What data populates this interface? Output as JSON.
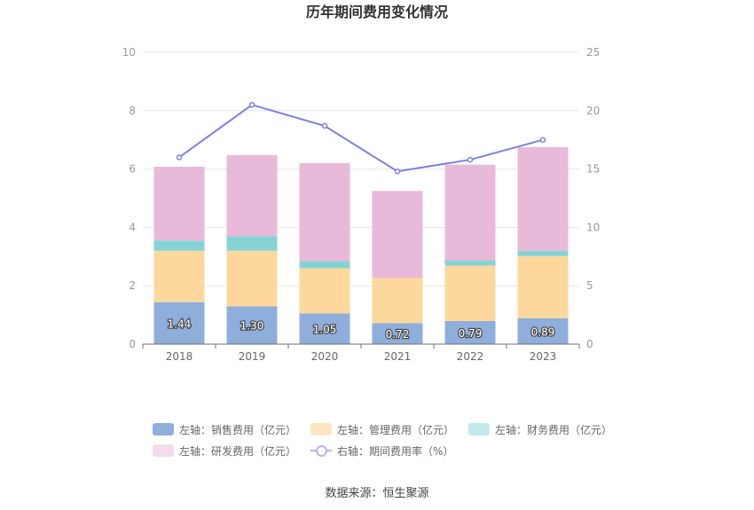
{
  "chart_data": {
    "type": "bar",
    "title": "历年期间费用变化情况",
    "categories": [
      "2018",
      "2019",
      "2020",
      "2021",
      "2022",
      "2023"
    ],
    "ylim_left": [
      0,
      10
    ],
    "ylim_right": [
      0,
      25
    ],
    "yticks_left": [
      "0",
      "2",
      "4",
      "6",
      "8",
      "10"
    ],
    "yticks_right": [
      "0",
      "5",
      "10",
      "15",
      "20",
      "25"
    ],
    "series": [
      {
        "name": "左轴：销售费用（亿元）",
        "axis": "left",
        "kind": "bar",
        "color": "#8eaedc",
        "values": [
          1.44,
          1.3,
          1.05,
          0.72,
          0.79,
          0.89
        ],
        "labels": [
          "1.44",
          "1.30",
          "1.05",
          "0.72",
          "0.79",
          "0.89"
        ]
      },
      {
        "name": "左轴：管理费用（亿元）",
        "axis": "left",
        "kind": "bar",
        "color": "#fdd89c",
        "values": [
          1.76,
          1.9,
          1.55,
          1.55,
          1.9,
          2.13
        ]
      },
      {
        "name": "左轴：财务费用（亿元）",
        "axis": "left",
        "kind": "bar",
        "color": "#86d3d6",
        "values": [
          0.35,
          0.5,
          0.25,
          0.0,
          0.18,
          0.18
        ]
      },
      {
        "name": "左轴：研发费用（亿元）",
        "axis": "left",
        "kind": "bar",
        "color": "#e8b9d8",
        "values": [
          2.53,
          2.78,
          3.35,
          2.98,
          3.28,
          3.55
        ]
      },
      {
        "name": "右轴：期间费用率（%）",
        "axis": "right",
        "kind": "line",
        "color": "#7b80e6",
        "values": [
          16.0,
          20.5,
          18.7,
          14.8,
          15.8,
          17.5
        ]
      }
    ],
    "legend": {
      "placement": "bottom",
      "swatch_colors": [
        "#8eaedc",
        "#fde6c2",
        "#c2eaeb",
        "#f3dcec",
        "#b3b6f0"
      ]
    },
    "source": "数据来源：恒生聚源"
  }
}
